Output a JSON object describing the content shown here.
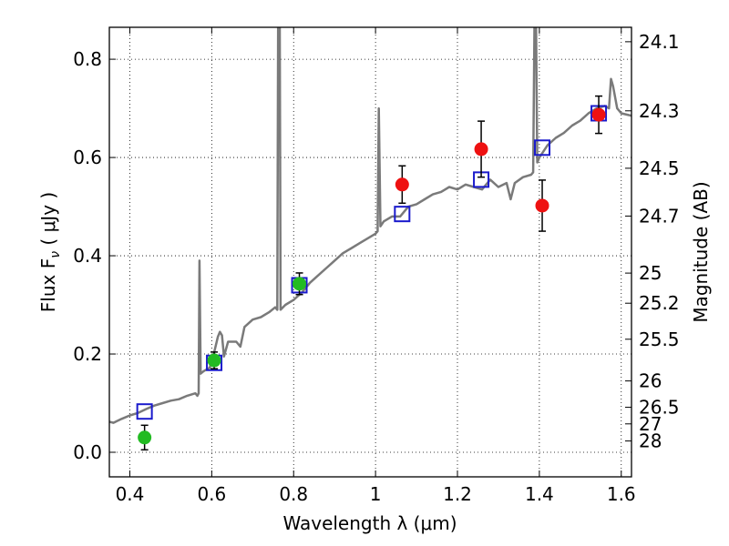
{
  "chart_data": {
    "type": "scatter",
    "xlabel": "Wavelength  λ (μm)",
    "ylabel": "Flux  F",
    "ylabel_sub": "ν",
    "ylabel_unit": "  ( μJy )",
    "y2label": "Magnitude (AB)",
    "xlim": [
      0.35,
      1.625
    ],
    "ylim": [
      -0.05,
      0.865
    ],
    "grid": true,
    "x_ticks": [
      0.4,
      0.6,
      0.8,
      1.0,
      1.2,
      1.4,
      1.6
    ],
    "x_tick_labels": [
      "0.4",
      "0.6",
      "0.8",
      "1",
      "1.2",
      "1.4",
      "1.6"
    ],
    "y_ticks": [
      0.0,
      0.2,
      0.4,
      0.6,
      0.8
    ],
    "y_tick_labels": [
      "0.0",
      "0.2",
      "0.4",
      "0.6",
      "0.8"
    ],
    "mag_ticks": [
      {
        "label": "24.1",
        "flux": 0.8356
      },
      {
        "label": "24.3",
        "flux": 0.695
      },
      {
        "label": "24.5",
        "flux": 0.5781
      },
      {
        "label": "24.7",
        "flux": 0.4808
      },
      {
        "label": "25",
        "flux": 0.3647
      },
      {
        "label": "25.2",
        "flux": 0.3034
      },
      {
        "label": "25.5",
        "flux": 0.2301
      },
      {
        "label": "26",
        "flux": 0.1452
      },
      {
        "label": "26.5",
        "flux": 0.0916
      },
      {
        "label": "27",
        "flux": 0.0578
      },
      {
        "label": "28",
        "flux": 0.023
      }
    ],
    "colors": {
      "template": "#7a7a7a",
      "model_marker": "#1a1acc",
      "green": "#22bb22",
      "red": "#ee1111"
    },
    "template_spectrum": [
      [
        0.35,
        0.062
      ],
      [
        0.36,
        0.06
      ],
      [
        0.38,
        0.068
      ],
      [
        0.4,
        0.075
      ],
      [
        0.42,
        0.08
      ],
      [
        0.44,
        0.088
      ],
      [
        0.46,
        0.095
      ],
      [
        0.48,
        0.1
      ],
      [
        0.5,
        0.105
      ],
      [
        0.52,
        0.108
      ],
      [
        0.54,
        0.115
      ],
      [
        0.56,
        0.12
      ],
      [
        0.565,
        0.115
      ],
      [
        0.568,
        0.12
      ],
      [
        0.57,
        0.39
      ],
      [
        0.573,
        0.16
      ],
      [
        0.58,
        0.165
      ],
      [
        0.595,
        0.172
      ],
      [
        0.605,
        0.2
      ],
      [
        0.615,
        0.235
      ],
      [
        0.62,
        0.245
      ],
      [
        0.625,
        0.238
      ],
      [
        0.63,
        0.195
      ],
      [
        0.64,
        0.225
      ],
      [
        0.66,
        0.225
      ],
      [
        0.67,
        0.215
      ],
      [
        0.68,
        0.255
      ],
      [
        0.7,
        0.27
      ],
      [
        0.72,
        0.275
      ],
      [
        0.74,
        0.285
      ],
      [
        0.755,
        0.295
      ],
      [
        0.76,
        0.29
      ],
      [
        0.762,
        0.865
      ],
      [
        0.766,
        0.865
      ],
      [
        0.768,
        0.29
      ],
      [
        0.78,
        0.3
      ],
      [
        0.8,
        0.31
      ],
      [
        0.82,
        0.325
      ],
      [
        0.84,
        0.345
      ],
      [
        0.86,
        0.36
      ],
      [
        0.88,
        0.375
      ],
      [
        0.9,
        0.39
      ],
      [
        0.92,
        0.405
      ],
      [
        0.94,
        0.415
      ],
      [
        0.96,
        0.425
      ],
      [
        0.98,
        0.435
      ],
      [
        1.0,
        0.445
      ],
      [
        1.005,
        0.45
      ],
      [
        1.008,
        0.7
      ],
      [
        1.012,
        0.46
      ],
      [
        1.02,
        0.47
      ],
      [
        1.04,
        0.48
      ],
      [
        1.06,
        0.48
      ],
      [
        1.08,
        0.5
      ],
      [
        1.1,
        0.505
      ],
      [
        1.12,
        0.515
      ],
      [
        1.14,
        0.525
      ],
      [
        1.16,
        0.53
      ],
      [
        1.18,
        0.54
      ],
      [
        1.2,
        0.535
      ],
      [
        1.22,
        0.545
      ],
      [
        1.24,
        0.54
      ],
      [
        1.26,
        0.535
      ],
      [
        1.28,
        0.555
      ],
      [
        1.3,
        0.54
      ],
      [
        1.32,
        0.548
      ],
      [
        1.33,
        0.515
      ],
      [
        1.34,
        0.548
      ],
      [
        1.36,
        0.56
      ],
      [
        1.38,
        0.565
      ],
      [
        1.385,
        0.57
      ],
      [
        1.388,
        0.865
      ],
      [
        1.392,
        0.865
      ],
      [
        1.395,
        0.59
      ],
      [
        1.4,
        0.6
      ],
      [
        1.42,
        0.625
      ],
      [
        1.44,
        0.64
      ],
      [
        1.46,
        0.65
      ],
      [
        1.48,
        0.665
      ],
      [
        1.5,
        0.675
      ],
      [
        1.52,
        0.69
      ],
      [
        1.54,
        0.7
      ],
      [
        1.56,
        0.705
      ],
      [
        1.57,
        0.7
      ],
      [
        1.575,
        0.76
      ],
      [
        1.58,
        0.745
      ],
      [
        1.59,
        0.7
      ],
      [
        1.6,
        0.69
      ],
      [
        1.625,
        0.685
      ]
    ],
    "model_points": [
      {
        "x": 0.436,
        "y": 0.083
      },
      {
        "x": 0.606,
        "y": 0.182
      },
      {
        "x": 0.814,
        "y": 0.34
      },
      {
        "x": 1.065,
        "y": 0.485
      },
      {
        "x": 1.258,
        "y": 0.555
      },
      {
        "x": 1.407,
        "y": 0.62
      },
      {
        "x": 1.545,
        "y": 0.69
      }
    ],
    "series": [
      {
        "color_key": "green",
        "points": [
          {
            "x": 0.436,
            "y": 0.03,
            "err": 0.025
          },
          {
            "x": 0.606,
            "y": 0.187,
            "err": 0.017
          },
          {
            "x": 0.814,
            "y": 0.343,
            "err": 0.022
          }
        ]
      },
      {
        "color_key": "red",
        "points": [
          {
            "x": 1.065,
            "y": 0.545,
            "err": 0.038
          },
          {
            "x": 1.258,
            "y": 0.617,
            "err": 0.057
          },
          {
            "x": 1.407,
            "y": 0.502,
            "err": 0.052
          },
          {
            "x": 1.545,
            "y": 0.687,
            "err": 0.038
          }
        ]
      }
    ]
  }
}
